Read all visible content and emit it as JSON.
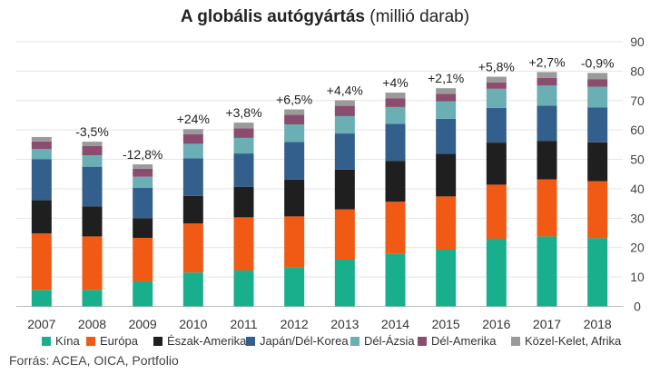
{
  "header": {
    "title_bold": "A globális autógyártás",
    "title_rest": " (millió darab)"
  },
  "source": "Forrás: ACEA, OICA, Portfolio",
  "chart_data": {
    "type": "bar",
    "stacked": true,
    "categories": [
      "2007",
      "2008",
      "2009",
      "2010",
      "2011",
      "2012",
      "2013",
      "2014",
      "2015",
      "2016",
      "2017",
      "2018"
    ],
    "ylim": [
      0,
      90
    ],
    "yticks": [
      0,
      10,
      20,
      30,
      40,
      50,
      60,
      70,
      80,
      90
    ],
    "y_axis_position": "right",
    "grid": true,
    "legend_position": "bottom",
    "series": [
      {
        "name": "Kína",
        "color": "#1aaf8c",
        "values": [
          5.6,
          5.6,
          8.5,
          11.5,
          12.2,
          13.3,
          15.9,
          17.8,
          19.3,
          23.0,
          23.8,
          23.2
        ]
      },
      {
        "name": "Európa",
        "color": "#f05a14",
        "values": [
          19.2,
          18.2,
          14.8,
          16.7,
          18.1,
          17.3,
          17.1,
          17.8,
          18.1,
          18.4,
          19.4,
          19.4
        ]
      },
      {
        "name": "Észak-Amerika",
        "color": "#1f1f1f",
        "values": [
          11.3,
          10.2,
          6.7,
          9.4,
          10.4,
          12.5,
          13.5,
          13.9,
          14.5,
          14.3,
          13.1,
          13.2
        ]
      },
      {
        "name": "Japán/Dél-Korea",
        "color": "#335f8c",
        "values": [
          14.0,
          13.5,
          10.3,
          12.8,
          11.3,
          12.8,
          12.3,
          12.6,
          11.9,
          11.8,
          12.0,
          11.9
        ]
      },
      {
        "name": "Dél-Ázsia",
        "color": "#6aafb4",
        "values": [
          3.4,
          3.9,
          3.8,
          4.9,
          5.3,
          6.0,
          5.9,
          5.7,
          5.9,
          6.5,
          6.8,
          7.0
        ]
      },
      {
        "name": "Dél-Amerika",
        "color": "#8b4d6e",
        "values": [
          2.6,
          3.1,
          2.7,
          3.2,
          3.3,
          3.3,
          3.5,
          3.0,
          2.6,
          2.2,
          2.6,
          2.6
        ]
      },
      {
        "name": "Közel-Kelet, Afrika",
        "color": "#9a9a9a",
        "values": [
          1.5,
          1.5,
          1.5,
          1.8,
          1.9,
          1.8,
          1.9,
          1.9,
          1.9,
          1.9,
          2.0,
          2.1
        ]
      }
    ],
    "annotations": [
      "",
      "-3,5%",
      "-12,8%",
      "+24%",
      "+3,8%",
      "+6,5%",
      "+4,4%",
      "+4%",
      "+2,1%",
      "+5,8%",
      "+2,7%",
      "-0,9%"
    ]
  }
}
